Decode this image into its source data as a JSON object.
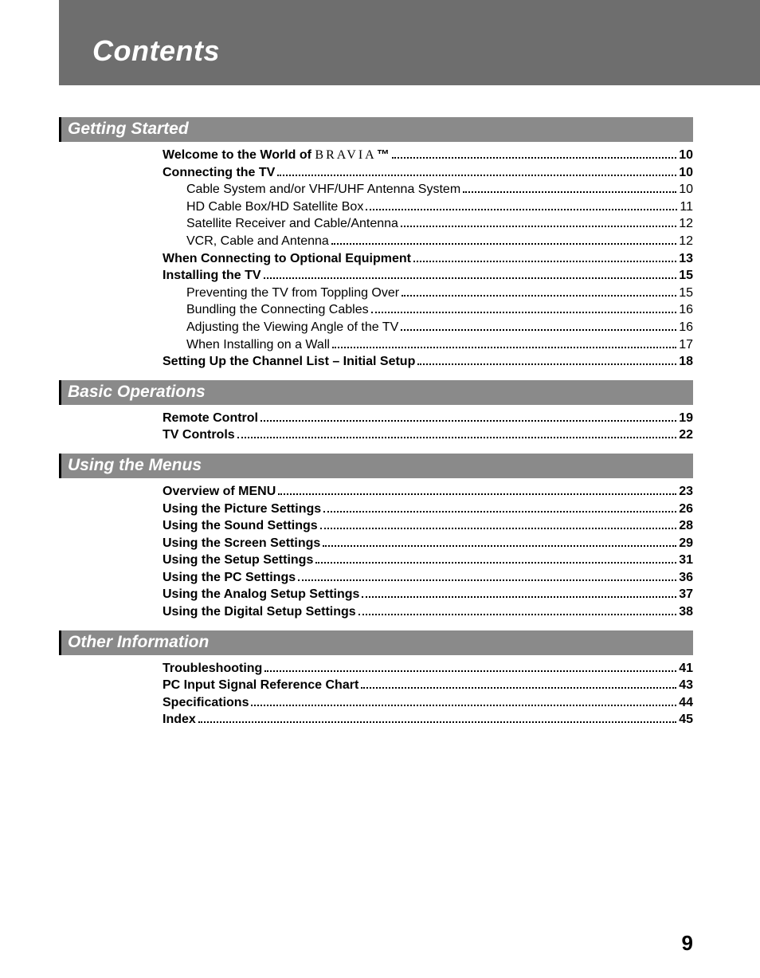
{
  "header": {
    "title": "Contents"
  },
  "pageNumber": "9",
  "sections": [
    {
      "heading": "Getting Started",
      "rows": [
        {
          "label": "Welcome to the World of ",
          "bravia": "BRAVIA",
          "tm": "™",
          "page": "10",
          "bold": true,
          "sub": false
        },
        {
          "label": "Connecting the TV",
          "page": "10",
          "bold": true,
          "sub": false
        },
        {
          "label": "Cable System and/or VHF/UHF Antenna System",
          "page": "10",
          "bold": false,
          "sub": true
        },
        {
          "label": "HD Cable Box/HD Satellite Box",
          "page": "11",
          "bold": false,
          "sub": true
        },
        {
          "label": "Satellite Receiver and Cable/Antenna",
          "page": "12",
          "bold": false,
          "sub": true
        },
        {
          "label": "VCR, Cable and Antenna",
          "page": "12",
          "bold": false,
          "sub": true
        },
        {
          "label": "When Connecting to Optional Equipment",
          "page": "13",
          "bold": true,
          "sub": false
        },
        {
          "label": "Installing the TV",
          "page": "15",
          "bold": true,
          "sub": false
        },
        {
          "label": "Preventing the TV from Toppling Over",
          "page": "15",
          "bold": false,
          "sub": true
        },
        {
          "label": "Bundling the Connecting Cables",
          "page": "16",
          "bold": false,
          "sub": true
        },
        {
          "label": "Adjusting the Viewing Angle of the TV",
          "page": "16",
          "bold": false,
          "sub": true
        },
        {
          "label": "When Installing on a Wall",
          "page": "17",
          "bold": false,
          "sub": true
        },
        {
          "label": "Setting Up the Channel List – Initial Setup",
          "page": "18",
          "bold": true,
          "sub": false
        }
      ]
    },
    {
      "heading": "Basic Operations",
      "rows": [
        {
          "label": "Remote Control",
          "page": "19",
          "bold": true,
          "sub": false
        },
        {
          "label": "TV Controls",
          "page": "22",
          "bold": true,
          "sub": false
        }
      ]
    },
    {
      "heading": "Using the Menus",
      "rows": [
        {
          "label": "Overview of MENU",
          "page": "23",
          "bold": true,
          "sub": false
        },
        {
          "label": "Using the Picture Settings",
          "page": "26",
          "bold": true,
          "sub": false
        },
        {
          "label": "Using the Sound Settings",
          "page": "28",
          "bold": true,
          "sub": false
        },
        {
          "label": "Using the Screen Settings",
          "page": "29",
          "bold": true,
          "sub": false
        },
        {
          "label": "Using the Setup Settings",
          "page": "31",
          "bold": true,
          "sub": false
        },
        {
          "label": "Using the PC Settings",
          "page": "36",
          "bold": true,
          "sub": false
        },
        {
          "label": "Using the Analog Setup Settings",
          "page": "37",
          "bold": true,
          "sub": false
        },
        {
          "label": "Using the Digital Setup Settings",
          "page": "38",
          "bold": true,
          "sub": false
        }
      ]
    },
    {
      "heading": "Other Information",
      "rows": [
        {
          "label": "Troubleshooting",
          "page": "41",
          "bold": true,
          "sub": false
        },
        {
          "label": "PC Input Signal Reference Chart",
          "page": "43",
          "bold": true,
          "sub": false
        },
        {
          "label": "Specifications",
          "page": "44",
          "bold": true,
          "sub": false
        },
        {
          "label": "Index",
          "page": "45",
          "bold": true,
          "sub": false
        }
      ]
    }
  ],
  "colors": {
    "headerBand": "#6e6e6e",
    "sectionBar": "#8a8a8a",
    "sectionBarBorder": "#000000",
    "text": "#000000",
    "headingText": "#ffffff",
    "background": "#ffffff"
  }
}
